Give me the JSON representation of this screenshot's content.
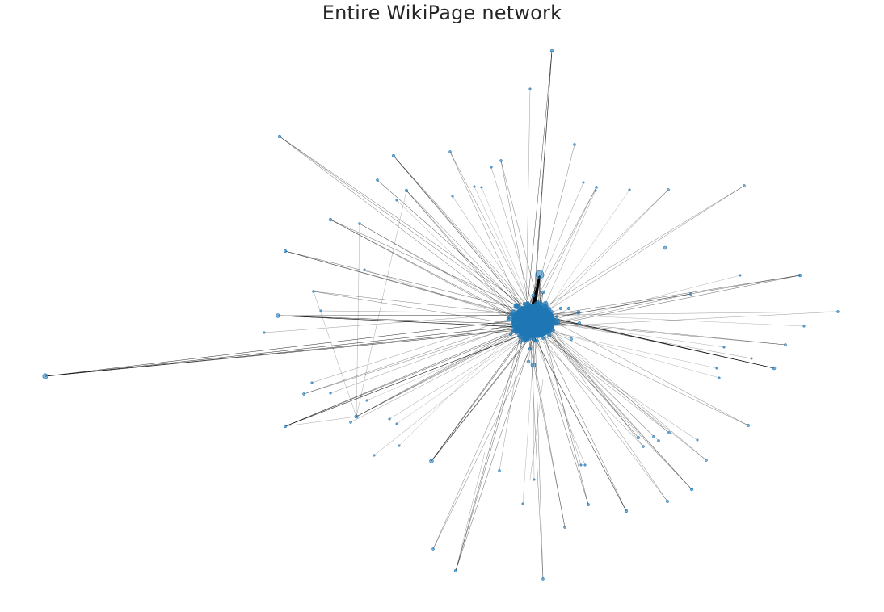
{
  "figure": {
    "title": "Entire WikiPage network"
  },
  "style": {
    "node_color": "#1f77b4",
    "edge_color": "#000000"
  }
}
